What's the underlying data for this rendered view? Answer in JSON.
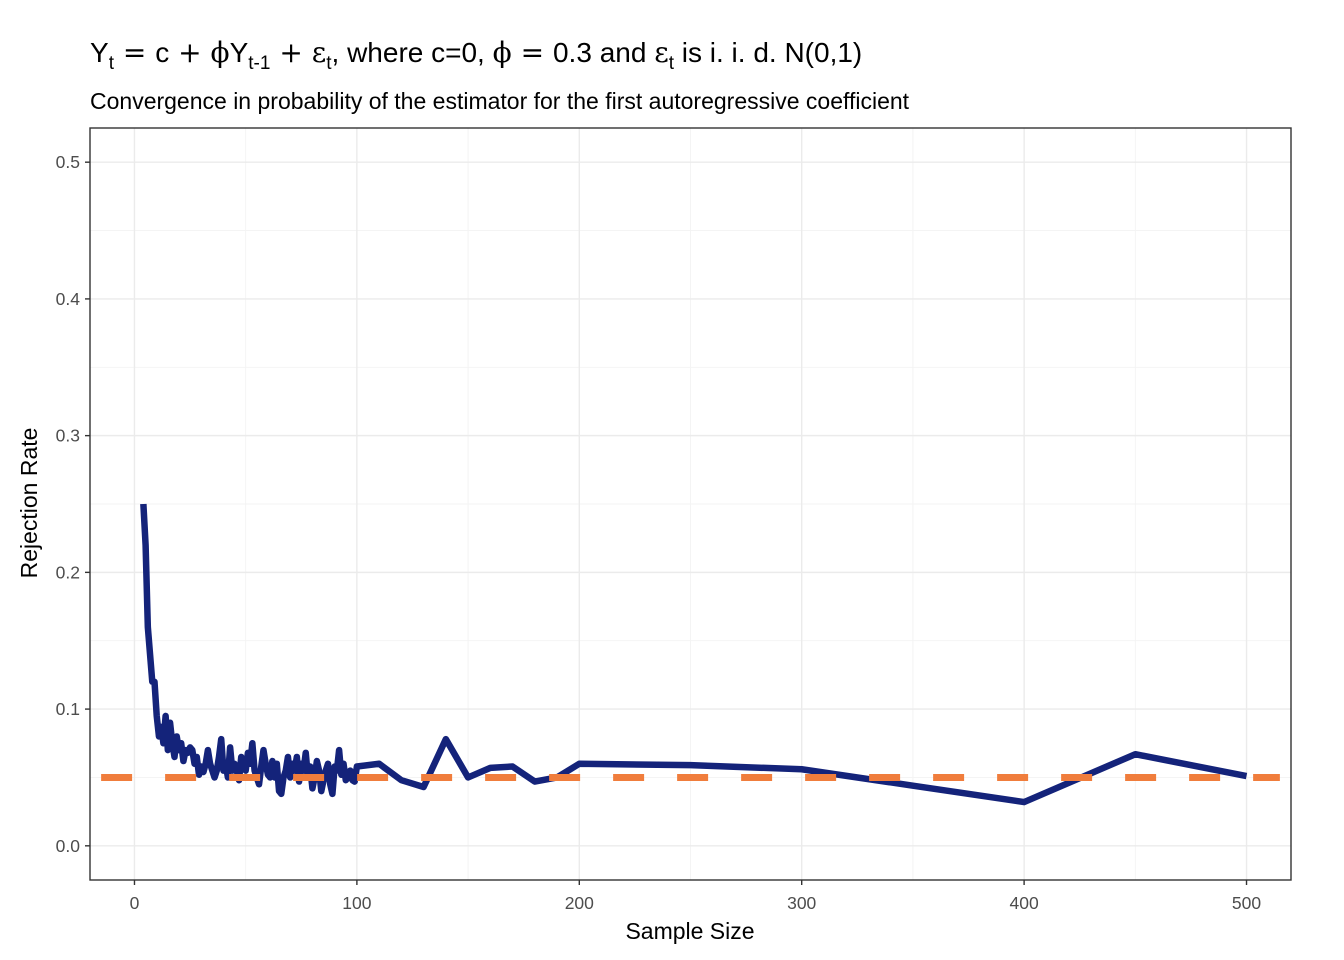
{
  "chart_data": {
    "type": "line",
    "title": {
      "parts": [
        {
          "t": "Y"
        },
        {
          "t": "t",
          "sub": true
        },
        {
          "t": " = ",
          "sym": true
        },
        {
          "t": "c"
        },
        {
          "t": " + ",
          "sym": true
        },
        {
          "t": "ϕ",
          "sym": true
        },
        {
          "t": "Y"
        },
        {
          "t": "t-1",
          "sub": true
        },
        {
          "t": " + ",
          "sym": true
        },
        {
          "t": "ε",
          "sym": true
        },
        {
          "t": "t",
          "sub": true
        },
        {
          "t": ", where c=0, "
        },
        {
          "t": "ϕ",
          "sym": true
        },
        {
          "t": " = ",
          "sym": true
        },
        {
          "t": "0.3 and "
        },
        {
          "t": "ε",
          "sym": true
        },
        {
          "t": "t",
          "sub": true
        },
        {
          "t": " is i. i. d. N(0,1)"
        }
      ]
    },
    "subtitle": "Convergence in probability of the estimator for the first autoregressive coefficient",
    "xlabel": "Sample Size",
    "ylabel": "Rejection Rate",
    "xlim": [
      -20,
      520
    ],
    "ylim": [
      -0.025,
      0.525
    ],
    "xticks": [
      0,
      100,
      200,
      300,
      400,
      500
    ],
    "xtick_labels": [
      "0",
      "100",
      "200",
      "300",
      "400",
      "500"
    ],
    "yticks": [
      0.0,
      0.1,
      0.2,
      0.3,
      0.4,
      0.5
    ],
    "ytick_labels": [
      "0.0",
      "0.1",
      "0.2",
      "0.3",
      "0.4",
      "0.5"
    ],
    "grid": true,
    "series": [
      {
        "color": "#14237a",
        "x": [
          4,
          5,
          6,
          7,
          8,
          9,
          10,
          11,
          12,
          13,
          14,
          15,
          16,
          17,
          18,
          19,
          20,
          21,
          22,
          23,
          24,
          25,
          26,
          27,
          28,
          29,
          30,
          31,
          32,
          33,
          34,
          35,
          36,
          37,
          38,
          39,
          40,
          41,
          42,
          43,
          44,
          45,
          46,
          47,
          48,
          49,
          50,
          51,
          52,
          53,
          54,
          55,
          56,
          57,
          58,
          59,
          60,
          61,
          62,
          63,
          64,
          65,
          66,
          67,
          68,
          69,
          70,
          71,
          72,
          73,
          74,
          75,
          76,
          77,
          78,
          79,
          80,
          81,
          82,
          83,
          84,
          85,
          86,
          87,
          88,
          89,
          90,
          91,
          92,
          93,
          94,
          95,
          96,
          97,
          98,
          99,
          100,
          110,
          120,
          130,
          140,
          150,
          160,
          170,
          180,
          190,
          200,
          250,
          300,
          350,
          400,
          450,
          500
        ],
        "y": [
          0.25,
          0.22,
          0.16,
          0.14,
          0.12,
          0.12,
          0.095,
          0.08,
          0.087,
          0.075,
          0.095,
          0.07,
          0.09,
          0.075,
          0.065,
          0.08,
          0.07,
          0.075,
          0.062,
          0.07,
          0.068,
          0.072,
          0.07,
          0.06,
          0.065,
          0.052,
          0.058,
          0.054,
          0.06,
          0.07,
          0.06,
          0.055,
          0.05,
          0.055,
          0.065,
          0.078,
          0.055,
          0.06,
          0.05,
          0.072,
          0.055,
          0.06,
          0.055,
          0.048,
          0.065,
          0.06,
          0.055,
          0.068,
          0.06,
          0.075,
          0.055,
          0.05,
          0.045,
          0.058,
          0.07,
          0.06,
          0.052,
          0.05,
          0.062,
          0.05,
          0.06,
          0.04,
          0.038,
          0.05,
          0.055,
          0.065,
          0.05,
          0.06,
          0.055,
          0.065,
          0.047,
          0.06,
          0.055,
          0.068,
          0.05,
          0.058,
          0.042,
          0.05,
          0.062,
          0.055,
          0.04,
          0.048,
          0.055,
          0.06,
          0.045,
          0.038,
          0.058,
          0.055,
          0.07,
          0.052,
          0.06,
          0.048,
          0.05,
          0.055,
          0.048,
          0.047,
          0.058,
          0.06,
          0.048,
          0.043,
          0.078,
          0.05,
          0.057,
          0.058,
          0.047,
          0.05,
          0.06,
          0.059,
          0.056,
          0.044,
          0.032,
          0.067,
          0.051
        ]
      },
      {
        "color": "#f07d3c",
        "dashed": true,
        "x": [
          -15,
          515
        ],
        "y": [
          0.05,
          0.05
        ]
      }
    ]
  }
}
